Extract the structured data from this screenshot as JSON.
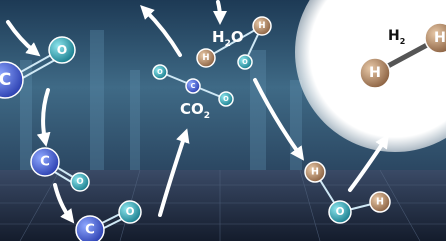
{
  "labels": {
    "water": [
      "H",
      "2",
      "O"
    ],
    "carbon_dioxide": [
      "CO",
      "2"
    ],
    "hydrogen": [
      "H",
      "2"
    ]
  },
  "atoms": [
    {
      "symbol": "C"
    },
    {
      "symbol": "O"
    },
    {
      "symbol": "C"
    },
    {
      "symbol": "O"
    },
    {
      "symbol": "C"
    },
    {
      "symbol": "O"
    },
    {
      "symbol": "O"
    },
    {
      "symbol": "C"
    },
    {
      "symbol": "O"
    },
    {
      "symbol": "H"
    },
    {
      "symbol": "O"
    },
    {
      "symbol": "H"
    },
    {
      "symbol": "H"
    },
    {
      "symbol": "O"
    },
    {
      "symbol": "H"
    },
    {
      "symbol": "H"
    },
    {
      "symbol": "H"
    }
  ]
}
